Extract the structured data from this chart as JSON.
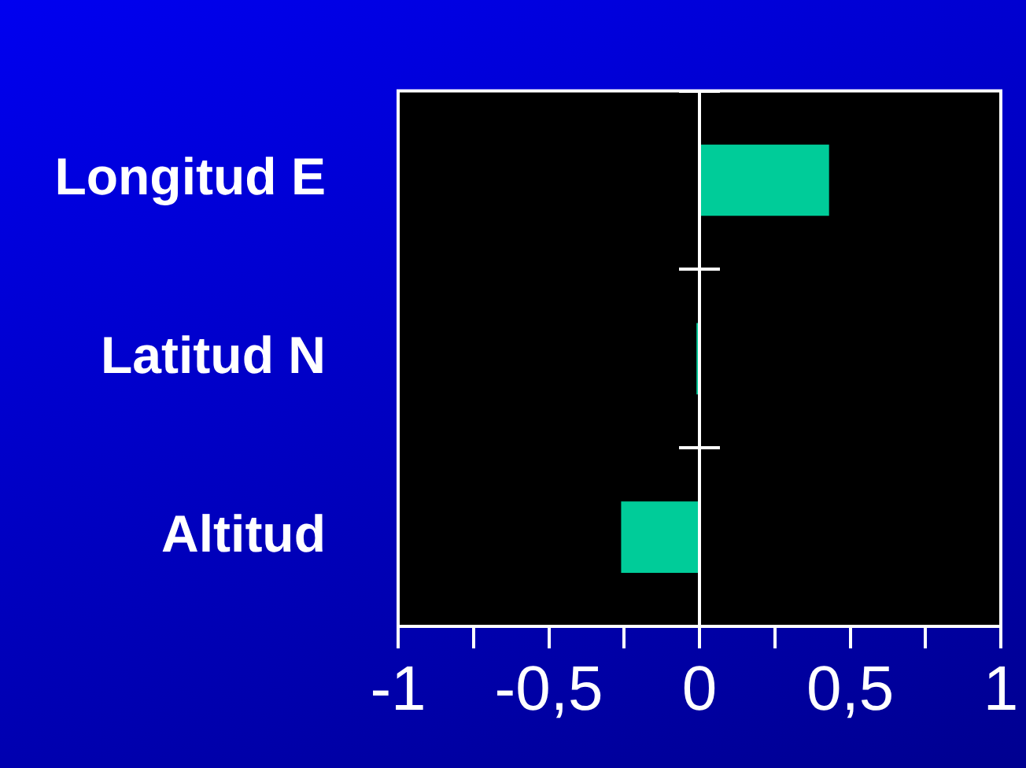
{
  "chart_data": {
    "type": "bar",
    "orientation": "horizontal",
    "categories": [
      "Longitud E",
      "Latitud N",
      "Altitud"
    ],
    "values": [
      0.43,
      -0.01,
      -0.26
    ],
    "color": "#00cc99",
    "xlim": [
      -1,
      1
    ],
    "xticks": [
      -1,
      {
        "value": -0.75,
        "label": null
      },
      {
        "value": -0.5,
        "label": "-0,5"
      },
      {
        "value": -0.25,
        "label": null
      },
      0,
      {
        "value": 0.25,
        "label": null
      },
      {
        "value": 0.5,
        "label": "0,5"
      },
      {
        "value": 0.75,
        "label": null
      },
      1
    ]
  }
}
